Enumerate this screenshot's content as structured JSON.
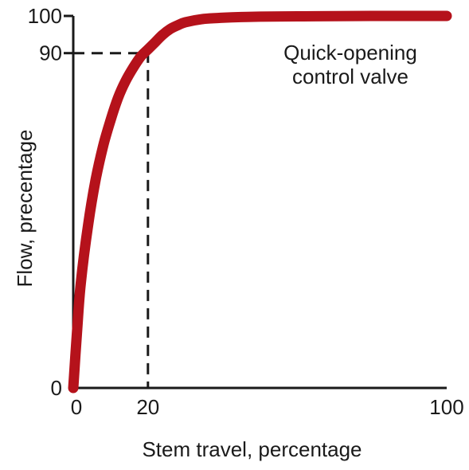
{
  "chart_data": {
    "type": "line",
    "title": "",
    "xlabel": "Stem travel, percentage",
    "ylabel": "Flow, precentage",
    "xlim": [
      0,
      100
    ],
    "ylim": [
      0,
      100
    ],
    "grid": false,
    "x_ticks": [
      {
        "value": 0,
        "label": "0"
      },
      {
        "value": 20,
        "label": "20"
      },
      {
        "value": 100,
        "label": "100"
      }
    ],
    "y_ticks": [
      {
        "value": 0,
        "label": "0"
      },
      {
        "value": 90,
        "label": "90"
      },
      {
        "value": 100,
        "label": "100"
      }
    ],
    "series": [
      {
        "color": "#b5121b",
        "x": [
          0,
          1,
          2,
          4,
          6,
          8,
          10,
          12,
          14,
          16,
          18,
          20,
          22,
          24,
          26,
          28,
          30,
          35,
          40,
          45,
          50,
          60,
          70,
          80,
          90,
          100
        ],
        "y": [
          0,
          15,
          28,
          44,
          56,
          65,
          72,
          78,
          82.5,
          86,
          89,
          91,
          93,
          95,
          96.5,
          97.5,
          98.3,
          99.2,
          99.5,
          99.7,
          99.8,
          99.9,
          99.95,
          100,
          100,
          100
        ]
      }
    ],
    "reference_lines": [
      {
        "from": [
          0,
          90
        ],
        "corner": [
          20,
          90
        ],
        "to": [
          20,
          0
        ],
        "style": "dashed"
      }
    ],
    "annotations": [
      {
        "lines": [
          "Quick-opening",
          "control valve"
        ],
        "placement": "upper-right"
      }
    ]
  }
}
